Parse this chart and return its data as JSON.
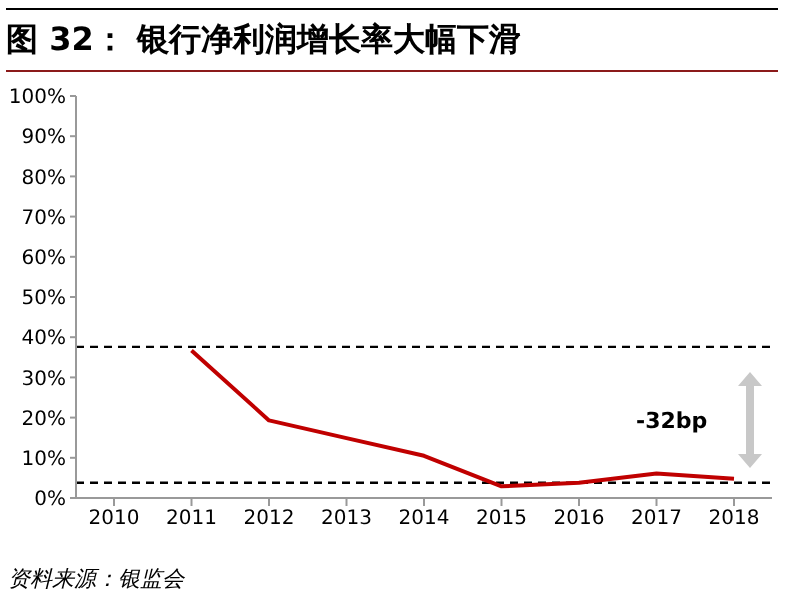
{
  "chart_data": {
    "type": "line",
    "title": "图 32： 银行净利润增长率大幅下滑",
    "categories": [
      "2010",
      "2011",
      "2012",
      "2013",
      "2014",
      "2015",
      "2016",
      "2017",
      "2018"
    ],
    "series": [
      {
        "color": "#c00000",
        "values": [
          null,
          36.7,
          19.3,
          14.9,
          10.5,
          2.9,
          3.8,
          6.1,
          4.8
        ]
      }
    ],
    "ylim": [
      0,
      100
    ],
    "yticks": [
      {
        "value": 0,
        "label": "0%"
      },
      {
        "value": 10,
        "label": "10%"
      },
      {
        "value": 20,
        "label": "20%"
      },
      {
        "value": 30,
        "label": "30%"
      },
      {
        "value": 40,
        "label": "40%"
      },
      {
        "value": 50,
        "label": "50%"
      },
      {
        "value": 60,
        "label": "60%"
      },
      {
        "value": 70,
        "label": "70%"
      },
      {
        "value": 80,
        "label": "80%"
      },
      {
        "value": 90,
        "label": "90%"
      },
      {
        "value": 100,
        "label": "100%"
      }
    ],
    "ref_lines": [
      {
        "axis": "y",
        "value": 37.6,
        "color": "#000000",
        "line_style": "dashed"
      },
      {
        "axis": "y",
        "value": 3.8,
        "color": "#000000",
        "line_style": "dashed"
      }
    ],
    "annotations": [
      "-32bp",
      "资料来源：银监会"
    ],
    "marker": "none",
    "line_style": "solid",
    "grid": false,
    "legend": false
  }
}
